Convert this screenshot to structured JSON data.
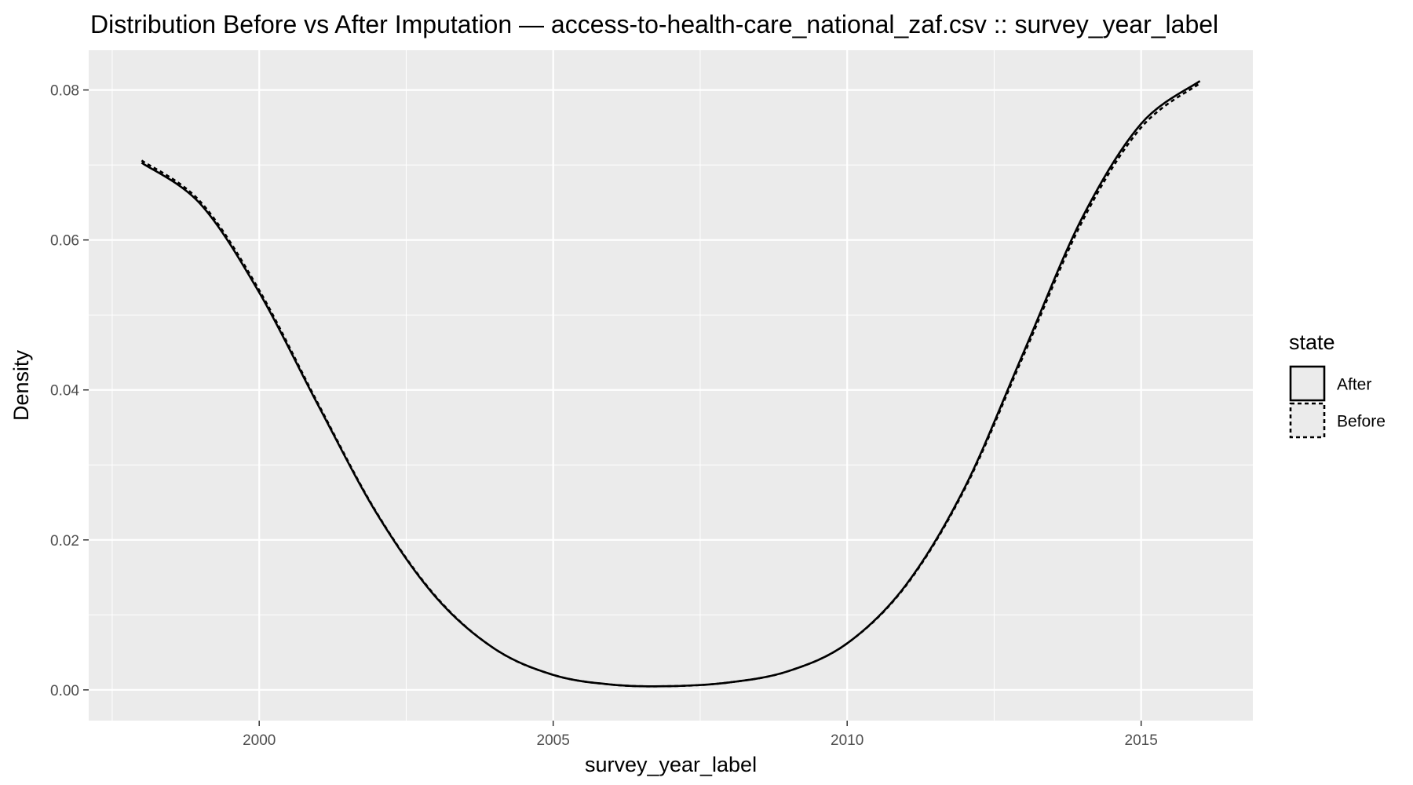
{
  "chart_data": {
    "type": "line",
    "title": "Distribution Before vs After Imputation — access-to-health-care_national_zaf.csv :: survey_year_label",
    "xlabel": "survey_year_label",
    "ylabel": "Density",
    "xlim": [
      1997.1,
      2016.9
    ],
    "ylim": [
      -0.0041,
      0.0853
    ],
    "x_ticks": [
      2000,
      2005,
      2010,
      2015
    ],
    "x_tick_labels": [
      "2000",
      "2005",
      "2010",
      "2015"
    ],
    "y_ticks": [
      0,
      0.02,
      0.04,
      0.06,
      0.08
    ],
    "y_tick_labels": [
      "0.00",
      "0.02",
      "0.04",
      "0.06",
      "0.08"
    ],
    "grid": true,
    "panel_color": "#ebebeb",
    "line_color": "#000000",
    "legend": {
      "title": "state",
      "position": "right",
      "entries": [
        {
          "label": "After",
          "linetype": "solid"
        },
        {
          "label": "Before",
          "linetype": "dashed"
        }
      ]
    },
    "series": [
      {
        "name": "After",
        "linetype": "solid",
        "x": [
          1998,
          1999,
          2000,
          2001,
          2002,
          2003,
          2004,
          2005,
          2006,
          2007,
          2008,
          2009,
          2010,
          2011,
          2012,
          2013,
          2014,
          2015,
          2016
        ],
        "y": [
          0.0703,
          0.0648,
          0.053,
          0.038,
          0.0235,
          0.0124,
          0.0055,
          0.002,
          0.0007,
          0.0005,
          0.001,
          0.0025,
          0.0062,
          0.014,
          0.027,
          0.045,
          0.063,
          0.0755,
          0.0812
        ]
      },
      {
        "name": "Before",
        "linetype": "dashed",
        "x": [
          1998,
          1999,
          2000,
          2001,
          2002,
          2003,
          2004,
          2005,
          2006,
          2007,
          2008,
          2009,
          2010,
          2011,
          2012,
          2013,
          2014,
          2015,
          2016
        ],
        "y": [
          0.0706,
          0.0651,
          0.0533,
          0.0382,
          0.0236,
          0.0125,
          0.0055,
          0.002,
          0.0007,
          0.0005,
          0.001,
          0.0025,
          0.0062,
          0.0139,
          0.0268,
          0.0446,
          0.0625,
          0.075,
          0.0809
        ]
      }
    ]
  }
}
